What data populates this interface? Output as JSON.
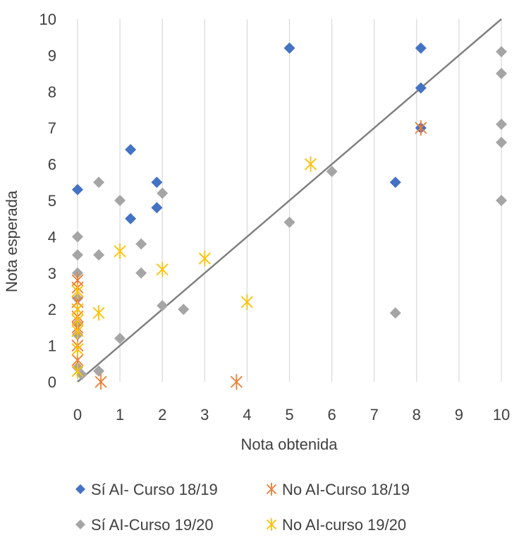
{
  "chart_data": {
    "type": "scatter",
    "title": "",
    "xlabel": "Nota obtenida",
    "ylabel": "Nota esperada",
    "xlim": [
      0,
      10
    ],
    "ylim": [
      0,
      10
    ],
    "x_ticks": [
      "0",
      "1",
      "2",
      "3",
      "4",
      "5",
      "6",
      "7",
      "8",
      "9",
      "10"
    ],
    "y_ticks": [
      "0",
      "1",
      "2",
      "3",
      "4",
      "5",
      "6",
      "7",
      "8",
      "9",
      "10"
    ],
    "grid": "vertical",
    "legend_position": "bottom",
    "reference_line": {
      "from": [
        0,
        0
      ],
      "to": [
        10,
        10
      ],
      "color": "#808080"
    },
    "series": [
      {
        "name": "Sí AI- Curso 18/19",
        "marker": "diamond",
        "color": "#4472C4",
        "points": [
          [
            0,
            5.3
          ],
          [
            1.25,
            6.4
          ],
          [
            1.25,
            4.5
          ],
          [
            1.87,
            5.5
          ],
          [
            1.87,
            4.8
          ],
          [
            5,
            9.2
          ],
          [
            7.5,
            5.5
          ],
          [
            8.1,
            9.2
          ],
          [
            8.1,
            8.1
          ],
          [
            8.1,
            7
          ]
        ]
      },
      {
        "name": "No AI-Curso 18/19",
        "marker": "star",
        "color": "#ED7D31",
        "points": [
          [
            0,
            2.8
          ],
          [
            0,
            2.6
          ],
          [
            0,
            2.2
          ],
          [
            0,
            2.0
          ],
          [
            0,
            1.8
          ],
          [
            0,
            1.5
          ],
          [
            0,
            1.0
          ],
          [
            0,
            0.6
          ],
          [
            0.55,
            0
          ],
          [
            3.75,
            0
          ],
          [
            8.1,
            7.0
          ]
        ]
      },
      {
        "name": "Sí AI-Curso 19/20",
        "marker": "diamond",
        "color": "#A5A5A5",
        "points": [
          [
            0,
            4.0
          ],
          [
            0,
            3.5
          ],
          [
            0,
            3.0
          ],
          [
            0,
            2.3
          ],
          [
            0,
            1.6
          ],
          [
            0,
            1.3
          ],
          [
            0,
            0.4
          ],
          [
            0.1,
            0.2
          ],
          [
            0.5,
            5.5
          ],
          [
            0.5,
            3.5
          ],
          [
            0.5,
            0.3
          ],
          [
            1,
            5.0
          ],
          [
            1,
            1.2
          ],
          [
            1.5,
            3.8
          ],
          [
            1.5,
            3.0
          ],
          [
            2,
            5.2
          ],
          [
            2,
            2.1
          ],
          [
            2.5,
            2.0
          ],
          [
            5,
            4.4
          ],
          [
            6,
            5.8
          ],
          [
            7.5,
            1.9
          ],
          [
            10,
            9.1
          ],
          [
            10,
            8.5
          ],
          [
            10,
            7.1
          ],
          [
            10,
            6.6
          ],
          [
            10,
            5.0
          ]
        ]
      },
      {
        "name": "No AI-curso 19/20",
        "marker": "star",
        "color": "#FFC000",
        "points": [
          [
            0,
            2.5
          ],
          [
            0,
            2.0
          ],
          [
            0,
            1.7
          ],
          [
            0,
            1.4
          ],
          [
            0,
            0.9
          ],
          [
            0,
            0.3
          ],
          [
            0.5,
            1.9
          ],
          [
            1,
            3.6
          ],
          [
            2,
            3.1
          ],
          [
            3,
            3.4
          ],
          [
            4,
            2.2
          ],
          [
            5.5,
            6.0
          ]
        ]
      }
    ]
  }
}
